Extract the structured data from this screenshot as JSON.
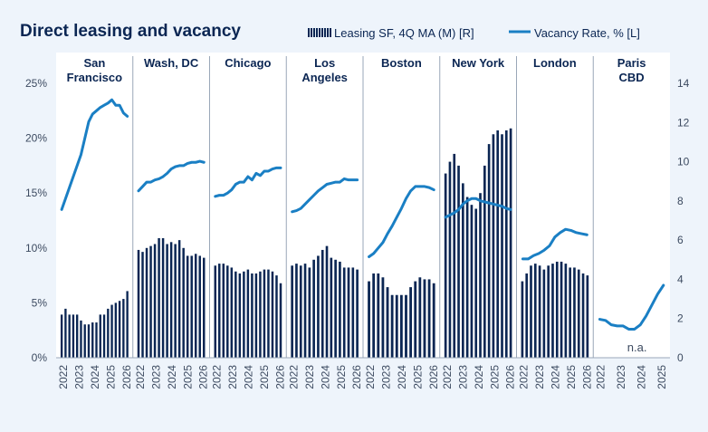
{
  "chart_data": {
    "type": "bar+line",
    "title": "Direct leasing and vacancy",
    "legend": {
      "position": "top-right",
      "bar_label": "Leasing SF, 4Q MA (M) [R]",
      "line_label": "Vacancy Rate, % [L]"
    },
    "colors": {
      "background": "#eef4fb",
      "plot_background": "#ffffff",
      "bar": "#0b2653",
      "line": "#1a7fc4",
      "title": "#0b2653",
      "text": "#3c4a60",
      "separator": "#9aa7b8"
    },
    "left_axis": {
      "label": "Vacancy Rate, %",
      "range": [
        0,
        25
      ],
      "ticks": [
        "0%",
        "5%",
        "10%",
        "15%",
        "20%",
        "25%"
      ]
    },
    "right_axis": {
      "label": "Leasing SF (M)",
      "range": [
        0,
        14
      ],
      "ticks": [
        "0",
        "2",
        "4",
        "6",
        "8",
        "10",
        "12",
        "14"
      ]
    },
    "x_ticks": [
      "2022",
      "2023",
      "2024",
      "2025",
      "2026"
    ],
    "panels": [
      {
        "market": "San Francisco",
        "x_ticks": [
          "2022",
          "2023",
          "2024",
          "2025",
          "2026"
        ],
        "leasing": [
          2.2,
          2.5,
          2.2,
          2.2,
          2.2,
          1.9,
          1.7,
          1.7,
          1.8,
          1.8,
          2.2,
          2.2,
          2.5,
          2.7,
          2.8,
          2.9,
          3.0,
          3.4
        ],
        "vacancy": [
          13.5,
          14.5,
          15.5,
          16.5,
          17.5,
          18.5,
          20.0,
          21.5,
          22.2,
          22.5,
          22.8,
          23.0,
          23.2,
          23.5,
          23.0,
          23.0,
          22.3,
          22.0
        ]
      },
      {
        "market": "Wash, DC",
        "x_ticks": [
          "2022",
          "2023",
          "2024",
          "2025",
          "2026"
        ],
        "leasing": [
          5.5,
          5.4,
          5.6,
          5.7,
          5.8,
          6.1,
          6.1,
          5.8,
          5.9,
          5.8,
          6.0,
          5.6,
          5.2,
          5.2,
          5.3,
          5.2,
          5.1
        ],
        "vacancy": [
          15.2,
          15.6,
          16.0,
          16.0,
          16.2,
          16.3,
          16.5,
          16.8,
          17.2,
          17.4,
          17.5,
          17.5,
          17.7,
          17.8,
          17.8,
          17.9,
          17.8
        ]
      },
      {
        "market": "Chicago",
        "x_ticks": [
          "2022",
          "2023",
          "2024",
          "2025",
          "2026"
        ],
        "leasing": [
          4.7,
          4.8,
          4.8,
          4.7,
          4.6,
          4.4,
          4.3,
          4.4,
          4.5,
          4.3,
          4.3,
          4.4,
          4.5,
          4.5,
          4.4,
          4.2,
          3.8
        ],
        "vacancy": [
          14.7,
          14.8,
          14.8,
          15.0,
          15.3,
          15.8,
          16.0,
          16.0,
          16.5,
          16.2,
          16.8,
          16.6,
          17.0,
          17.0,
          17.2,
          17.3,
          17.3
        ]
      },
      {
        "market": "Los Angeles",
        "x_ticks": [
          "2022",
          "2023",
          "2024",
          "2025",
          "2026"
        ],
        "leasing": [
          4.7,
          4.8,
          4.7,
          4.8,
          4.6,
          5.0,
          5.2,
          5.5,
          5.7,
          5.1,
          5.0,
          4.9,
          4.6,
          4.6,
          4.6,
          4.5
        ],
        "vacancy": [
          13.3,
          13.4,
          13.6,
          14.0,
          14.4,
          14.8,
          15.2,
          15.5,
          15.8,
          15.9,
          16.0,
          16.0,
          16.3,
          16.2,
          16.2,
          16.2
        ]
      },
      {
        "market": "Boston",
        "x_ticks": [
          "2022",
          "2023",
          "2024",
          "2025",
          "2026"
        ],
        "leasing": [
          3.9,
          4.3,
          4.3,
          4.1,
          3.6,
          3.2,
          3.2,
          3.2,
          3.2,
          3.6,
          3.9,
          4.1,
          4.0,
          4.0,
          3.8
        ],
        "vacancy": [
          9.2,
          9.5,
          10.0,
          10.5,
          11.3,
          12.0,
          12.8,
          13.6,
          14.5,
          15.2,
          15.6,
          15.6,
          15.6,
          15.5,
          15.3
        ]
      },
      {
        "market": "New York",
        "x_ticks": [
          "2022",
          "2023",
          "2024",
          "2025",
          "2026"
        ],
        "leasing": [
          9.4,
          10.0,
          10.4,
          9.8,
          8.9,
          8.2,
          7.8,
          7.6,
          8.4,
          9.8,
          10.9,
          11.4,
          11.6,
          11.4,
          11.6,
          11.7
        ],
        "vacancy": [
          12.8,
          13.0,
          13.2,
          13.5,
          14.0,
          14.3,
          14.5,
          14.5,
          14.3,
          14.2,
          14.1,
          14.0,
          13.9,
          13.8,
          13.6,
          13.5
        ]
      },
      {
        "market": "London",
        "x_ticks": [
          "2022",
          "2023",
          "2024",
          "2025",
          "2026"
        ],
        "leasing": [
          3.9,
          4.3,
          4.7,
          4.8,
          4.7,
          4.5,
          4.7,
          4.8,
          4.9,
          4.9,
          4.8,
          4.6,
          4.6,
          4.5,
          4.3,
          4.2
        ],
        "vacancy": [
          9.0,
          9.0,
          9.3,
          9.5,
          9.8,
          10.2,
          11.0,
          11.4,
          11.7,
          11.6,
          11.4,
          11.3,
          11.2
        ]
      },
      {
        "market": "Paris CBD",
        "x_ticks": [
          "2022",
          "2023",
          "2024",
          "2025"
        ],
        "note": "n.a.",
        "leasing": [],
        "vacancy": [
          3.5,
          3.4,
          3.0,
          2.9,
          2.9,
          2.6,
          2.6,
          3.0,
          3.8,
          4.8,
          5.8,
          6.6
        ]
      }
    ]
  }
}
